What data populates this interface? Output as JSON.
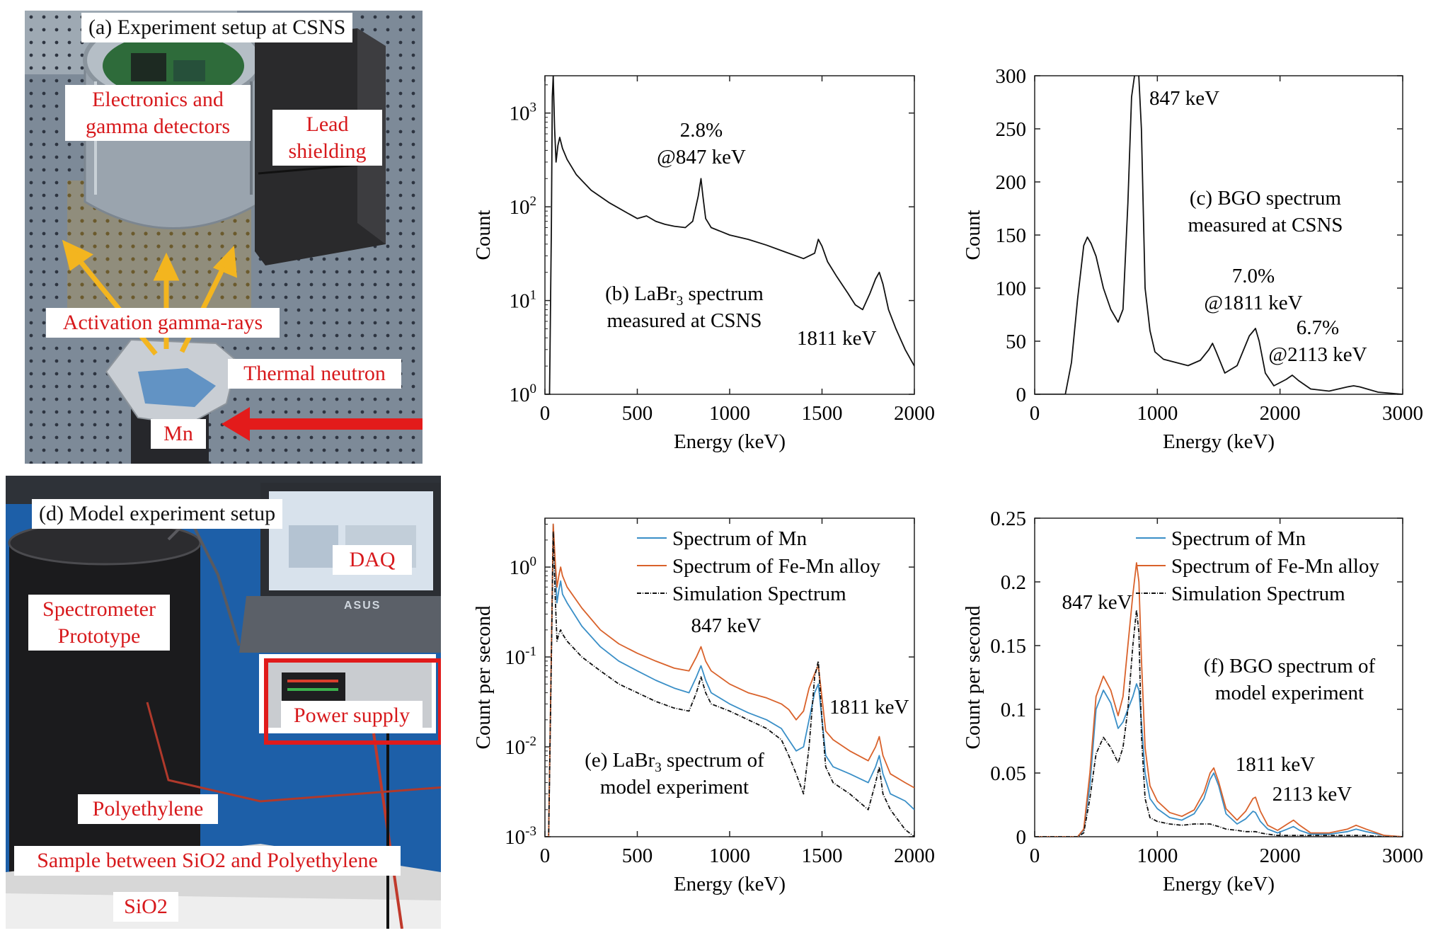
{
  "panel_a": {
    "caption": "(a) Experiment setup at CSNS",
    "labels": {
      "electronics_l1": "Electronics and",
      "electronics_l2": "gamma detectors",
      "lead_l1": "Lead",
      "lead_l2": "shielding",
      "activation": "Activation gamma-rays",
      "thermal": "Thermal neutron",
      "mn": "Mn"
    }
  },
  "panel_d": {
    "caption": "(d)  Model experiment setup",
    "labels": {
      "daq": "DAQ",
      "asus": "ASUS",
      "spectrometer_l1": "Spectrometer",
      "spectrometer_l2": "Prototype",
      "power": "Power supply",
      "polyethylene": "Polyethylene",
      "sample": "Sample between SiO2 and Polyethylene",
      "sio2": "SiO2"
    }
  },
  "colors": {
    "label_red": "#d7191c",
    "mn_blue": "#3a8fc7",
    "femn_orange": "#d9622b",
    "sim_black": "#111111",
    "arrow_yellow": "#f3b51f"
  },
  "chart_data": [
    {
      "id": "b",
      "type": "line",
      "yscale": "log",
      "xlim": [
        0,
        2000
      ],
      "ylim": [
        1,
        2500
      ],
      "xticks": [
        0,
        500,
        1000,
        1500,
        2000
      ],
      "yticks": [
        {
          "v": 1,
          "base": "10",
          "exp": "0"
        },
        {
          "v": 10,
          "base": "10",
          "exp": "1"
        },
        {
          "v": 100,
          "base": "10",
          "exp": "2"
        },
        {
          "v": 1000,
          "base": "10",
          "exp": "3"
        }
      ],
      "xlabel": "Energy (keV)",
      "ylabel": "Count",
      "annotations": {
        "res_pct": "2.8%",
        "res_at": "@847 keV",
        "title_l1a": "(b) LaBr",
        "title_sub": "3",
        "title_l1b": " spectrum",
        "title_l2": "measured at CSNS",
        "peak": "1811 keV"
      },
      "series": [
        {
          "name": "LaBr3 spectrum",
          "color": "#111111",
          "x": [
            0,
            15,
            25,
            35,
            40,
            45,
            52,
            60,
            70,
            80,
            95,
            120,
            170,
            250,
            350,
            450,
            500,
            550,
            600,
            650,
            700,
            760,
            800,
            830,
            845,
            855,
            870,
            900,
            1000,
            1100,
            1200,
            1300,
            1400,
            1460,
            1480,
            1500,
            1530,
            1580,
            1640,
            1680,
            1720,
            1760,
            1790,
            1810,
            1830,
            1860,
            1900,
            1950,
            2000
          ],
          "y": [
            1,
            1,
            1,
            60,
            1500,
            2500,
            700,
            300,
            450,
            550,
            420,
            320,
            220,
            150,
            110,
            85,
            75,
            80,
            70,
            65,
            62,
            60,
            70,
            130,
            200,
            130,
            75,
            60,
            50,
            45,
            39,
            33,
            28,
            32,
            45,
            38,
            26,
            18,
            12,
            9,
            8,
            12,
            17,
            20,
            15,
            8,
            5,
            3,
            2
          ]
        }
      ]
    },
    {
      "id": "c",
      "type": "line",
      "xlim": [
        0,
        3000
      ],
      "ylim": [
        0,
        300
      ],
      "xticks": [
        0,
        1000,
        2000,
        3000
      ],
      "yticks": [
        0,
        50,
        100,
        150,
        200,
        250,
        300
      ],
      "xlabel": "Energy (keV)",
      "ylabel": "Count",
      "annotations": {
        "peak": "847 keV",
        "title_l1": "(c) BGO spectrum",
        "title_l2": "measured at CSNS",
        "res1_pct": "7.0%",
        "res1_at": "@1811 keV",
        "res2_pct": "6.7%",
        "res2_at": "@2113 keV"
      },
      "series": [
        {
          "name": "BGO spectrum",
          "color": "#111111",
          "x": [
            0,
            250,
            300,
            350,
            400,
            430,
            460,
            500,
            560,
            620,
            680,
            720,
            760,
            790,
            820,
            845,
            870,
            900,
            940,
            980,
            1050,
            1150,
            1250,
            1350,
            1420,
            1450,
            1480,
            1550,
            1650,
            1750,
            1800,
            1830,
            1880,
            1950,
            2050,
            2100,
            2150,
            2250,
            2400,
            2550,
            2600,
            2650,
            2800,
            3000
          ],
          "y": [
            0,
            0,
            30,
            90,
            140,
            148,
            142,
            130,
            100,
            80,
            68,
            80,
            180,
            280,
            305,
            308,
            250,
            100,
            60,
            40,
            33,
            30,
            27,
            32,
            42,
            48,
            40,
            20,
            27,
            55,
            62,
            50,
            20,
            8,
            14,
            18,
            13,
            5,
            3,
            7,
            8,
            7,
            2,
            0
          ]
        }
      ]
    },
    {
      "id": "e",
      "type": "line",
      "yscale": "log",
      "xlim": [
        0,
        2000
      ],
      "ylim": [
        0.001,
        3.5
      ],
      "xticks": [
        0,
        500,
        1000,
        1500,
        2000
      ],
      "yticks": [
        {
          "v": 0.001,
          "base": "10",
          "exp": "-3"
        },
        {
          "v": 0.01,
          "base": "10",
          "exp": "-2"
        },
        {
          "v": 0.1,
          "base": "10",
          "exp": "-1"
        },
        {
          "v": 1,
          "base": "10",
          "exp": "0"
        }
      ],
      "xlabel": "Energy (keV)",
      "ylabel": "Count per second",
      "legend": [
        "Spectrum of Mn",
        "Spectrum of Fe-Mn alloy",
        "Simulation Spectrum"
      ],
      "annotations": {
        "peak847": "847 keV",
        "peak1811": "1811 keV",
        "title_l1a": "(e) LaBr",
        "title_sub": "3",
        "title_l1b": " spectrum of",
        "title_l2": "model experiment"
      },
      "series": [
        {
          "name": "Spectrum of Mn",
          "color": "#3a8fc7",
          "x": [
            0,
            20,
            35,
            45,
            55,
            65,
            75,
            85,
            95,
            120,
            200,
            300,
            400,
            500,
            600,
            700,
            780,
            820,
            845,
            870,
            900,
            1000,
            1100,
            1200,
            1280,
            1320,
            1360,
            1400,
            1430,
            1460,
            1480,
            1500,
            1520,
            1560,
            1650,
            1750,
            1790,
            1810,
            1830,
            1870,
            1950,
            2000
          ],
          "y": [
            0.001,
            0.001,
            0.1,
            3,
            1,
            0.4,
            0.55,
            0.7,
            0.5,
            0.4,
            0.22,
            0.13,
            0.09,
            0.07,
            0.055,
            0.045,
            0.04,
            0.06,
            0.08,
            0.055,
            0.04,
            0.03,
            0.024,
            0.02,
            0.016,
            0.012,
            0.009,
            0.01,
            0.02,
            0.04,
            0.05,
            0.02,
            0.008,
            0.006,
            0.005,
            0.004,
            0.006,
            0.008,
            0.005,
            0.003,
            0.0025,
            0.002
          ]
        },
        {
          "name": "Spectrum of Fe-Mn alloy",
          "color": "#d9622b",
          "x": [
            0,
            20,
            35,
            45,
            55,
            65,
            75,
            85,
            95,
            120,
            200,
            300,
            400,
            500,
            600,
            700,
            780,
            820,
            845,
            870,
            900,
            1000,
            1100,
            1200,
            1280,
            1320,
            1360,
            1400,
            1430,
            1460,
            1480,
            1500,
            1520,
            1560,
            1650,
            1750,
            1790,
            1810,
            1830,
            1870,
            1950,
            2000
          ],
          "y": [
            0.001,
            0.001,
            0.12,
            3,
            1.2,
            0.6,
            0.8,
            1.0,
            0.8,
            0.6,
            0.35,
            0.2,
            0.14,
            0.11,
            0.09,
            0.075,
            0.07,
            0.1,
            0.13,
            0.09,
            0.07,
            0.05,
            0.04,
            0.035,
            0.03,
            0.026,
            0.02,
            0.025,
            0.045,
            0.065,
            0.08,
            0.035,
            0.015,
            0.012,
            0.009,
            0.007,
            0.01,
            0.013,
            0.008,
            0.005,
            0.004,
            0.0035
          ]
        },
        {
          "name": "Simulation Spectrum",
          "color": "#111111",
          "x": [
            0,
            20,
            35,
            45,
            55,
            65,
            75,
            85,
            95,
            120,
            200,
            300,
            400,
            500,
            600,
            700,
            780,
            820,
            845,
            870,
            900,
            1000,
            1100,
            1200,
            1280,
            1320,
            1360,
            1400,
            1430,
            1460,
            1480,
            1500,
            1520,
            1560,
            1650,
            1750,
            1790,
            1810,
            1830,
            1870,
            1950,
            2000
          ],
          "y": [
            0.001,
            0.001,
            0.1,
            2.5,
            0.5,
            0.15,
            0.18,
            0.2,
            0.18,
            0.15,
            0.1,
            0.07,
            0.05,
            0.04,
            0.032,
            0.027,
            0.025,
            0.04,
            0.06,
            0.04,
            0.03,
            0.025,
            0.02,
            0.016,
            0.012,
            0.008,
            0.005,
            0.003,
            0.01,
            0.06,
            0.09,
            0.02,
            0.006,
            0.004,
            0.003,
            0.002,
            0.004,
            0.006,
            0.003,
            0.002,
            0.0012,
            0.001
          ]
        }
      ]
    },
    {
      "id": "f",
      "type": "line",
      "xlim": [
        0,
        3000
      ],
      "ylim": [
        0,
        0.25
      ],
      "xticks": [
        0,
        1000,
        2000,
        3000
      ],
      "yticks": [
        {
          "v": 0,
          "t": "0"
        },
        {
          "v": 0.05,
          "t": "0.05"
        },
        {
          "v": 0.1,
          "t": "0.1"
        },
        {
          "v": 0.15,
          "t": "0.15"
        },
        {
          "v": 0.2,
          "t": "0.2"
        },
        {
          "v": 0.25,
          "t": "0.25"
        }
      ],
      "xlabel": "Energy (keV)",
      "ylabel": "Count per second",
      "legend": [
        "Spectrum of Mn",
        "Spectrum of Fe-Mn alloy",
        "Simulation Spectrum"
      ],
      "annotations": {
        "peak847": "847 keV",
        "peak1811": "1811 keV",
        "peak2113": "2113  keV",
        "title_l1": "(f) BGO spectrum of",
        "title_l2": "model experiment"
      },
      "series": [
        {
          "name": "Spectrum of Mn",
          "color": "#3a8fc7",
          "x": [
            0,
            350,
            400,
            450,
            500,
            560,
            620,
            680,
            720,
            760,
            800,
            830,
            850,
            870,
            900,
            940,
            1000,
            1100,
            1200,
            1300,
            1380,
            1430,
            1460,
            1500,
            1560,
            1650,
            1720,
            1780,
            1800,
            1840,
            1900,
            1980,
            2060,
            2110,
            2160,
            2250,
            2400,
            2550,
            2620,
            2700,
            2850,
            3000
          ],
          "y": [
            0,
            0,
            0.005,
            0.04,
            0.1,
            0.115,
            0.105,
            0.085,
            0.09,
            0.1,
            0.11,
            0.12,
            0.115,
            0.09,
            0.05,
            0.03,
            0.022,
            0.015,
            0.013,
            0.018,
            0.03,
            0.045,
            0.05,
            0.04,
            0.018,
            0.01,
            0.014,
            0.02,
            0.019,
            0.012,
            0.006,
            0.003,
            0.006,
            0.008,
            0.005,
            0.002,
            0.002,
            0.004,
            0.006,
            0.004,
            0.001,
            0
          ]
        },
        {
          "name": "Spectrum of Fe-Mn alloy",
          "color": "#d9622b",
          "x": [
            0,
            350,
            400,
            450,
            500,
            560,
            620,
            680,
            720,
            760,
            800,
            830,
            850,
            870,
            900,
            940,
            1000,
            1100,
            1200,
            1300,
            1380,
            1430,
            1460,
            1500,
            1560,
            1650,
            1720,
            1780,
            1800,
            1840,
            1900,
            1980,
            2060,
            2110,
            2160,
            2250,
            2400,
            2550,
            2620,
            2700,
            2850,
            3000
          ],
          "y": [
            0,
            0,
            0.006,
            0.05,
            0.11,
            0.126,
            0.115,
            0.095,
            0.11,
            0.15,
            0.19,
            0.215,
            0.2,
            0.14,
            0.07,
            0.04,
            0.028,
            0.019,
            0.016,
            0.021,
            0.035,
            0.05,
            0.054,
            0.043,
            0.022,
            0.013,
            0.02,
            0.03,
            0.031,
            0.02,
            0.009,
            0.005,
            0.01,
            0.013,
            0.009,
            0.003,
            0.003,
            0.006,
            0.009,
            0.006,
            0.001,
            0
          ]
        },
        {
          "name": "Simulation Spectrum",
          "color": "#111111",
          "x": [
            0,
            350,
            400,
            450,
            500,
            560,
            620,
            680,
            720,
            760,
            800,
            830,
            850,
            870,
            900,
            940,
            1000,
            1100,
            1200,
            1300,
            1380,
            1430,
            1460,
            1500,
            1560,
            1650,
            1720,
            1780,
            1800,
            1840,
            1900,
            1980,
            2060,
            2110,
            2160,
            2250,
            2400,
            2550,
            2620,
            2700,
            2850,
            3000
          ],
          "y": [
            0,
            0,
            0.003,
            0.03,
            0.065,
            0.078,
            0.07,
            0.058,
            0.07,
            0.1,
            0.15,
            0.178,
            0.16,
            0.08,
            0.03,
            0.015,
            0.012,
            0.01,
            0.009,
            0.01,
            0.01,
            0.01,
            0.009,
            0.008,
            0.006,
            0.005,
            0.004,
            0.004,
            0.004,
            0.003,
            0.002,
            0.001,
            0.001,
            0.001,
            0.001,
            0.001,
            0.001,
            0.001,
            0.001,
            0.001,
            0,
            0
          ]
        }
      ]
    }
  ]
}
